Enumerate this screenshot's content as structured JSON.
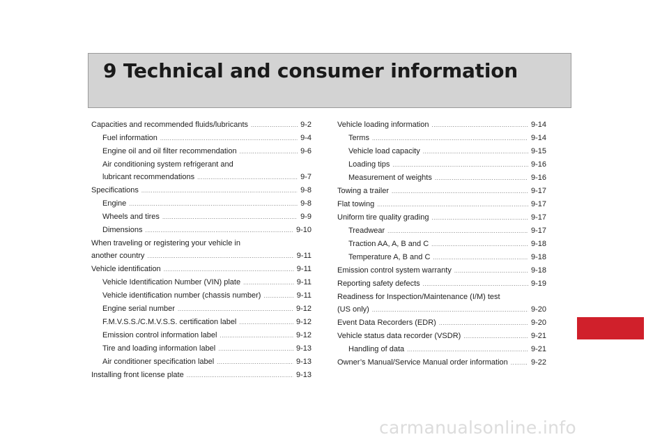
{
  "chapter": {
    "title": "9 Technical and consumer information"
  },
  "toc_left": [
    {
      "title": "Capacities and recommended fluids/lubricants",
      "page": "9-2",
      "level": 0
    },
    {
      "title": "Fuel information",
      "page": "9-4",
      "level": 1
    },
    {
      "title": "Engine oil and oil filter recommendation",
      "page": "9-6",
      "level": 1
    },
    {
      "title_line1": "Air conditioning system refrigerant and",
      "title": "lubricant recommendations",
      "page": "9-7",
      "level": 1
    },
    {
      "title": "Specifications",
      "page": "9-8",
      "level": 0
    },
    {
      "title": "Engine",
      "page": "9-8",
      "level": 1
    },
    {
      "title": "Wheels and tires",
      "page": "9-9",
      "level": 1
    },
    {
      "title": "Dimensions",
      "page": "9-10",
      "level": 1
    },
    {
      "title_line1": "When traveling or registering your vehicle in",
      "title": "another country",
      "page": "9-11",
      "level": 0
    },
    {
      "title": "Vehicle identification",
      "page": "9-11",
      "level": 0
    },
    {
      "title": "Vehicle Identification Number (VIN) plate",
      "page": "9-11",
      "level": 1
    },
    {
      "title": "Vehicle identification number (chassis number)",
      "page": "9-11",
      "level": 1
    },
    {
      "title": "Engine serial number",
      "page": "9-12",
      "level": 1
    },
    {
      "title": "F.M.V.S.S./C.M.V.S.S. certification label",
      "page": "9-12",
      "level": 1
    },
    {
      "title": "Emission control information label",
      "page": "9-12",
      "level": 1
    },
    {
      "title": "Tire and loading information label",
      "page": "9-13",
      "level": 1
    },
    {
      "title": "Air conditioner specification label",
      "page": "9-13",
      "level": 1
    },
    {
      "title": "Installing front license plate",
      "page": "9-13",
      "level": 0
    }
  ],
  "toc_right": [
    {
      "title": "Vehicle loading information",
      "page": "9-14",
      "level": 0
    },
    {
      "title": "Terms",
      "page": "9-14",
      "level": 1
    },
    {
      "title": "Vehicle load capacity",
      "page": "9-15",
      "level": 1
    },
    {
      "title": "Loading tips",
      "page": "9-16",
      "level": 1
    },
    {
      "title": "Measurement of weights",
      "page": "9-16",
      "level": 1
    },
    {
      "title": "Towing a trailer",
      "page": "9-17",
      "level": 0
    },
    {
      "title": "Flat towing",
      "page": "9-17",
      "level": 0
    },
    {
      "title": "Uniform tire quality grading",
      "page": "9-17",
      "level": 0
    },
    {
      "title": "Treadwear",
      "page": "9-17",
      "level": 1
    },
    {
      "title": "Traction AA, A, B and C",
      "page": "9-18",
      "level": 1
    },
    {
      "title": "Temperature A, B and C",
      "page": "9-18",
      "level": 1
    },
    {
      "title": "Emission control system warranty",
      "page": "9-18",
      "level": 0
    },
    {
      "title": "Reporting safety defects",
      "page": "9-19",
      "level": 0
    },
    {
      "title_line1": "Readiness for Inspection/Maintenance (I/M) test",
      "title": "(US only)",
      "page": "9-20",
      "level": 0
    },
    {
      "title": "Event Data Recorders (EDR)",
      "page": "9-20",
      "level": 0
    },
    {
      "title": "Vehicle status data recorder (VSDR)",
      "page": "9-21",
      "level": 0
    },
    {
      "title": "Handling of data",
      "page": "9-21",
      "level": 1
    },
    {
      "title": "Owner’s Manual/Service Manual order information",
      "page": "9-22",
      "level": 0
    }
  ],
  "colors": {
    "banner": "#d3d3d3",
    "tab": "#d0202b",
    "text": "#222222"
  },
  "watermark": "carmanualsonline.info"
}
